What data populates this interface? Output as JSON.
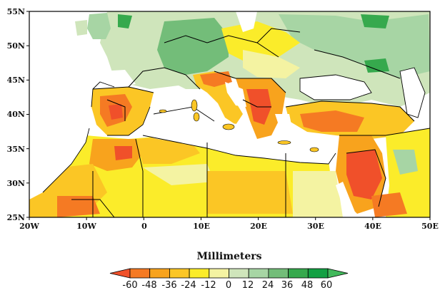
{
  "map": {
    "lat_labels": [
      "55N",
      "50N",
      "45N",
      "40N",
      "35N",
      "30N",
      "25N"
    ],
    "lon_labels": [
      "20W",
      "10W",
      "0",
      "10E",
      "20E",
      "30E",
      "40E",
      "50E"
    ],
    "extent": {
      "lon": [
        -20,
        50
      ],
      "lat": [
        25,
        55
      ]
    },
    "colors": {
      "sea": "#ffffff",
      "border": "#000000"
    }
  },
  "colorbar": {
    "title": "Millimeters",
    "tick_labels": [
      "-60",
      "-48",
      "-36",
      "-24",
      "-12",
      "0",
      "12",
      "24",
      "36",
      "48",
      "60"
    ],
    "bins": [
      "#f0502a",
      "#f57a23",
      "#f8a31d",
      "#fbc625",
      "#fbec2a",
      "#f4f3a2",
      "#cfe5bb",
      "#a7d5a4",
      "#73bd79",
      "#36a94d",
      "#13a043",
      "#41b95b"
    ]
  }
}
